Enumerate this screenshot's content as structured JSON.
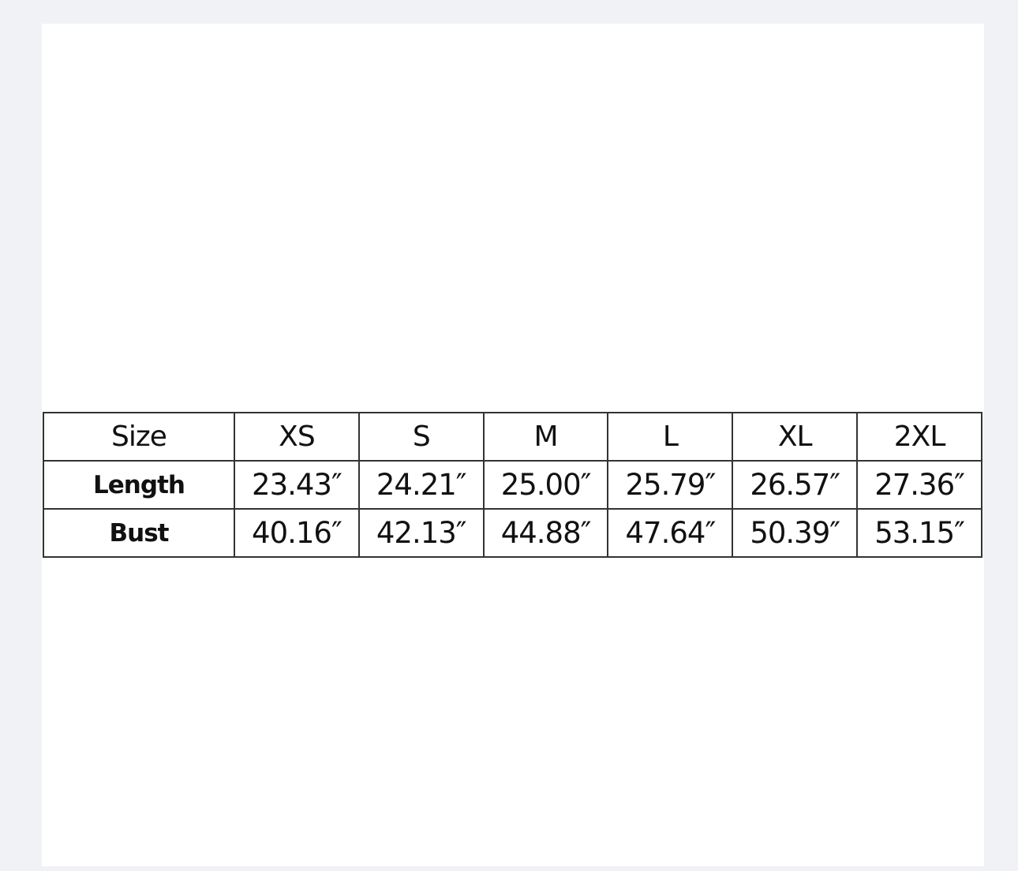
{
  "size_chart": {
    "headers": [
      "Size",
      "XS",
      "S",
      "M",
      "L",
      "XL",
      "2XL"
    ],
    "rows": [
      {
        "label": "Length",
        "values": [
          "23.43″",
          "24.21″",
          "25.00″",
          "25.79″",
          "26.57″",
          "27.36″"
        ]
      },
      {
        "label": "Bust",
        "values": [
          "40.16″",
          "42.13″",
          "44.88″",
          "47.64″",
          "50.39″",
          "53.15″"
        ]
      }
    ]
  }
}
